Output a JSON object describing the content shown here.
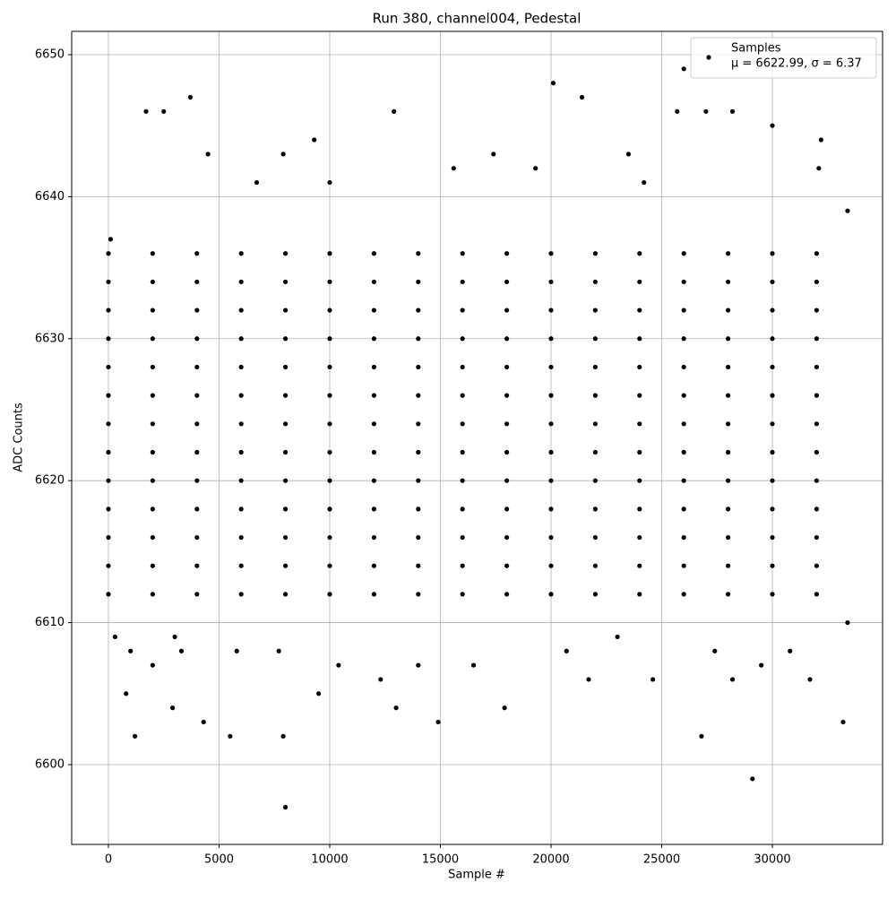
{
  "chart_data": {
    "type": "scatter",
    "title": "Run 380, channel004, Pedestal",
    "x_label": "Sample #",
    "y_label": "ADC Counts",
    "x": [
      0,
      0,
      0,
      0,
      0,
      0,
      0,
      0,
      0,
      0,
      0,
      0,
      0,
      2000,
      2000,
      2000,
      2000,
      2000,
      2000,
      2000,
      2000,
      2000,
      2000,
      2000,
      2000,
      2000,
      4000,
      4000,
      4000,
      4000,
      4000,
      4000,
      4000,
      4000,
      4000,
      4000,
      4000,
      4000,
      4000,
      6000,
      6000,
      6000,
      6000,
      6000,
      6000,
      6000,
      6000,
      6000,
      6000,
      6000,
      6000,
      6000,
      8000,
      8000,
      8000,
      8000,
      8000,
      8000,
      8000,
      8000,
      8000,
      8000,
      8000,
      8000,
      8000,
      10000,
      10000,
      10000,
      10000,
      10000,
      10000,
      10000,
      10000,
      10000,
      10000,
      10000,
      10000,
      10000,
      12000,
      12000,
      12000,
      12000,
      12000,
      12000,
      12000,
      12000,
      12000,
      12000,
      12000,
      12000,
      12000,
      14000,
      14000,
      14000,
      14000,
      14000,
      14000,
      14000,
      14000,
      14000,
      14000,
      14000,
      14000,
      14000,
      16000,
      16000,
      16000,
      16000,
      16000,
      16000,
      16000,
      16000,
      16000,
      16000,
      16000,
      16000,
      16000,
      18000,
      18000,
      18000,
      18000,
      18000,
      18000,
      18000,
      18000,
      18000,
      18000,
      18000,
      18000,
      18000,
      20000,
      20000,
      20000,
      20000,
      20000,
      20000,
      20000,
      20000,
      20000,
      20000,
      20000,
      20000,
      20000,
      22000,
      22000,
      22000,
      22000,
      22000,
      22000,
      22000,
      22000,
      22000,
      22000,
      22000,
      22000,
      22000,
      24000,
      24000,
      24000,
      24000,
      24000,
      24000,
      24000,
      24000,
      24000,
      24000,
      24000,
      24000,
      24000,
      26000,
      26000,
      26000,
      26000,
      26000,
      26000,
      26000,
      26000,
      26000,
      26000,
      26000,
      26000,
      26000,
      28000,
      28000,
      28000,
      28000,
      28000,
      28000,
      28000,
      28000,
      28000,
      28000,
      28000,
      28000,
      28000,
      30000,
      30000,
      30000,
      30000,
      30000,
      30000,
      30000,
      30000,
      30000,
      30000,
      30000,
      30000,
      30000,
      32000,
      32000,
      32000,
      32000,
      32000,
      32000,
      32000,
      32000,
      32000,
      32000,
      32000,
      32000,
      32000,
      8000,
      29100,
      1200,
      5500,
      7900,
      26800,
      4300,
      14900,
      33200,
      2900,
      13000,
      17900,
      1700,
      3700,
      21400,
      20100,
      26000,
      12900,
      25700,
      28200,
      30000,
      9300,
      4500,
      7900,
      17400,
      2500,
      32200,
      19300,
      15600,
      23500,
      800,
      9500,
      21700,
      24600,
      12300,
      28200,
      31700,
      2000,
      14000,
      29500,
      10400,
      16500,
      1000,
      3300,
      5800,
      7700,
      20700,
      27400,
      30800,
      300,
      3000,
      23000,
      33400,
      33400,
      100,
      6700,
      10000,
      24200,
      27000,
      32100
    ],
    "series": [
      {
        "name": "Samples",
        "color": "#000000",
        "values": [
          6612,
          6614,
          6616,
          6618,
          6620,
          6622,
          6624,
          6626,
          6628,
          6630,
          6632,
          6634,
          6636,
          6612,
          6614,
          6616,
          6618,
          6620,
          6622,
          6624,
          6626,
          6628,
          6630,
          6632,
          6634,
          6636,
          6612,
          6614,
          6616,
          6618,
          6620,
          6622,
          6624,
          6626,
          6628,
          6630,
          6632,
          6634,
          6636,
          6612,
          6614,
          6616,
          6618,
          6620,
          6622,
          6624,
          6626,
          6628,
          6630,
          6632,
          6634,
          6636,
          6612,
          6614,
          6616,
          6618,
          6620,
          6622,
          6624,
          6626,
          6628,
          6630,
          6632,
          6634,
          6636,
          6612,
          6614,
          6616,
          6618,
          6620,
          6622,
          6624,
          6626,
          6628,
          6630,
          6632,
          6634,
          6636,
          6612,
          6614,
          6616,
          6618,
          6620,
          6622,
          6624,
          6626,
          6628,
          6630,
          6632,
          6634,
          6636,
          6612,
          6614,
          6616,
          6618,
          6620,
          6622,
          6624,
          6626,
          6628,
          6630,
          6632,
          6634,
          6636,
          6612,
          6614,
          6616,
          6618,
          6620,
          6622,
          6624,
          6626,
          6628,
          6630,
          6632,
          6634,
          6636,
          6612,
          6614,
          6616,
          6618,
          6620,
          6622,
          6624,
          6626,
          6628,
          6630,
          6632,
          6634,
          6636,
          6612,
          6614,
          6616,
          6618,
          6620,
          6622,
          6624,
          6626,
          6628,
          6630,
          6632,
          6634,
          6636,
          6612,
          6614,
          6616,
          6618,
          6620,
          6622,
          6624,
          6626,
          6628,
          6630,
          6632,
          6634,
          6636,
          6612,
          6614,
          6616,
          6618,
          6620,
          6622,
          6624,
          6626,
          6628,
          6630,
          6632,
          6634,
          6636,
          6612,
          6614,
          6616,
          6618,
          6620,
          6622,
          6624,
          6626,
          6628,
          6630,
          6632,
          6634,
          6636,
          6612,
          6614,
          6616,
          6618,
          6620,
          6622,
          6624,
          6626,
          6628,
          6630,
          6632,
          6634,
          6636,
          6612,
          6614,
          6616,
          6618,
          6620,
          6622,
          6624,
          6626,
          6628,
          6630,
          6632,
          6634,
          6636,
          6612,
          6614,
          6616,
          6618,
          6620,
          6622,
          6624,
          6626,
          6628,
          6630,
          6632,
          6634,
          6636,
          6597,
          6599,
          6602,
          6602,
          6602,
          6602,
          6603,
          6603,
          6603,
          6604,
          6604,
          6604,
          6646,
          6647,
          6647,
          6648,
          6649,
          6646,
          6646,
          6646,
          6645,
          6644,
          6643,
          6643,
          6643,
          6646,
          6644,
          6642,
          6642,
          6643,
          6605,
          6605,
          6606,
          6606,
          6606,
          6606,
          6606,
          6607,
          6607,
          6607,
          6607,
          6607,
          6608,
          6608,
          6608,
          6608,
          6608,
          6608,
          6608,
          6609,
          6609,
          6609,
          6610,
          6639,
          6637,
          6641,
          6641,
          6641,
          6646,
          6642
        ]
      }
    ],
    "legend_note": "μ = 6622.99, σ = 6.37",
    "xlim": [
      -1660,
      34980
    ],
    "ylim": [
      6594.38,
      6651.64
    ],
    "xticks": [
      0,
      5000,
      10000,
      15000,
      20000,
      25000,
      30000
    ],
    "yticks": [
      6600,
      6610,
      6620,
      6630,
      6640,
      6650
    ],
    "grid": true,
    "legend": "upper right"
  }
}
